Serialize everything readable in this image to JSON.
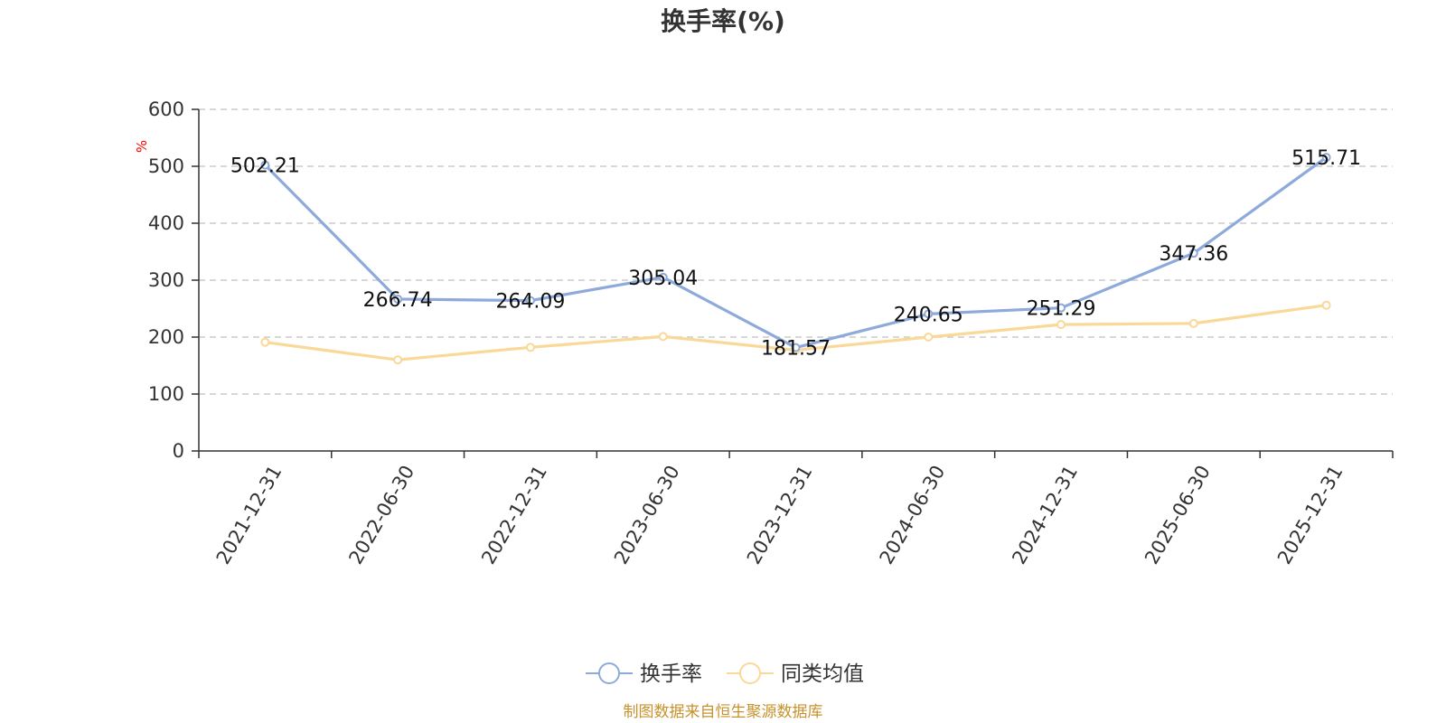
{
  "chart_data": {
    "type": "line",
    "title": "换手率(%)",
    "y_unit": "%",
    "ylim": [
      0,
      600
    ],
    "y_ticks": [
      "0",
      "100",
      "200",
      "300",
      "400",
      "500",
      "600"
    ],
    "grid": "horizontal-dashed",
    "categories": [
      "2021-12-31",
      "2022-06-30",
      "2022-12-31",
      "2023-06-30",
      "2023-12-31",
      "2024-06-30",
      "2024-12-31",
      "2025-06-30",
      "2025-12-31"
    ],
    "series": [
      {
        "name": "换手率",
        "color": "#8eaadb",
        "values": [
          502.21,
          266.74,
          264.09,
          305.04,
          181.57,
          240.65,
          251.29,
          347.36,
          515.71
        ],
        "labels": [
          "502.21",
          "266.74",
          "264.09",
          "305.04",
          "181.57",
          "240.65",
          "251.29",
          "347.36",
          "515.71"
        ]
      },
      {
        "name": "同类均值",
        "color": "#fad898",
        "values": [
          191,
          160,
          182,
          201,
          177,
          200,
          222,
          224,
          256
        ]
      }
    ],
    "legend_position": "bottom-center",
    "source": "制图数据来自恒生聚源数据库",
    "source_color": "#c8922c",
    "unit_color": "#ff0000"
  }
}
